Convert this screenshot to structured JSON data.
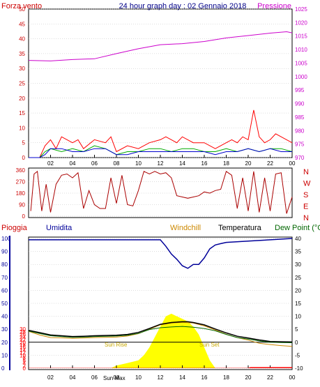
{
  "header": {
    "wind_label": "Forza vento",
    "title": "24 hour graph day : 02 Gennaio 2018",
    "pressure_label": "Pressione"
  },
  "colors": {
    "left_axis": "#cc0000",
    "pressure": "#cc00cc",
    "gust": "#ff0000",
    "wind": "#00aa00",
    "wind_avg": "#0000cc",
    "direction": "#aa0000",
    "humidity": "#000099",
    "temperature": "#000000",
    "windchill": "#cc8800",
    "dewpoint": "#006600",
    "sun": "#ffff00",
    "rain": "#ff0000",
    "grid": "#bbbbbb",
    "sun_text": "#c8a800"
  },
  "bottom_header": {
    "rain": "Pioggia",
    "humidity": "Umidita",
    "windchill": "Windchill",
    "temperature": "Temperatura",
    "dewpoint": "Dew Point (°C"
  },
  "sun_labels": {
    "rise": "Sun Rise",
    "set": "Sun Set",
    "max": "Sun Max"
  },
  "compass_letters": [
    "N",
    "W",
    "S",
    "E",
    "N"
  ],
  "chart_data": [
    {
      "type": "line",
      "name": "wind_pressure",
      "x_ticks": [
        "02",
        "04",
        "06",
        "08",
        "10",
        "12",
        "14",
        "16",
        "18",
        "20",
        "22",
        "00"
      ],
      "left_ticks": [
        0,
        5,
        10,
        15,
        20,
        25,
        30,
        35,
        40,
        45,
        50
      ],
      "right_ticks": [
        970,
        975,
        980,
        985,
        990,
        995,
        1000,
        1005,
        1010,
        1015,
        1020,
        1025
      ],
      "left_ylim": [
        0,
        50
      ],
      "right_ylim": [
        970,
        1025
      ],
      "pressure": {
        "x": [
          0,
          2,
          4,
          6,
          8,
          10,
          12,
          14,
          16,
          18,
          20,
          22,
          23.5,
          24
        ],
        "y": [
          1006.0,
          1005.8,
          1006.3,
          1006.6,
          1008.5,
          1010.3,
          1011.8,
          1012.2,
          1013.0,
          1014.3,
          1015.2,
          1016.1,
          1016.6,
          1016.2
        ]
      },
      "gust": {
        "x": [
          0,
          1,
          1.5,
          2,
          2.5,
          3,
          4,
          4.5,
          5,
          6,
          7,
          7.5,
          8,
          9,
          10,
          11,
          12,
          12.5,
          13,
          13.5,
          14,
          14.5,
          15,
          16,
          17,
          18,
          18.5,
          19,
          19.5,
          20,
          20.5,
          21,
          21.5,
          22,
          22.5,
          23,
          23.5,
          24
        ],
        "y": [
          0,
          0,
          4,
          6,
          3,
          7,
          5,
          6,
          3,
          6,
          5,
          7,
          2,
          4,
          3,
          5,
          6,
          7,
          6,
          5,
          7,
          6,
          5,
          5,
          3,
          5,
          6,
          5,
          7,
          6,
          16,
          7,
          5,
          6,
          8,
          7,
          6,
          5
        ]
      },
      "wind": {
        "x": [
          0,
          1,
          1.5,
          2,
          3,
          4,
          5,
          6,
          7,
          8,
          9,
          10,
          11,
          12,
          13,
          14,
          15,
          16,
          17,
          18,
          19,
          20,
          21,
          22,
          23,
          24
        ],
        "y": [
          0,
          0,
          2,
          3,
          2,
          3,
          2,
          4,
          3,
          1,
          2,
          2,
          3,
          3,
          2,
          3,
          3,
          2,
          2,
          3,
          2,
          3,
          2,
          3,
          3,
          2
        ]
      },
      "wind_avg": {
        "x": [
          0,
          1,
          1.5,
          2,
          3,
          4,
          5,
          6,
          7,
          8,
          9,
          10,
          11,
          12,
          13,
          14,
          15,
          16,
          17,
          18,
          19,
          20,
          21,
          22,
          23,
          24
        ],
        "y": [
          0,
          0,
          1,
          3,
          3,
          2,
          2,
          3,
          3,
          1,
          1,
          2,
          2,
          2,
          2,
          2,
          2,
          2,
          1,
          2,
          2,
          3,
          2,
          3,
          2,
          2
        ]
      }
    },
    {
      "type": "scatter",
      "name": "wind_direction",
      "y_ticks": [
        360,
        270,
        180,
        90,
        0
      ],
      "ylim": [
        0,
        360
      ],
      "x": [
        0.2,
        0.5,
        0.8,
        1.2,
        1.6,
        2.0,
        2.5,
        3,
        3.5,
        4,
        4.5,
        5,
        5.5,
        6,
        6.5,
        7,
        7.5,
        8,
        8.5,
        9,
        9.5,
        10,
        10.5,
        11,
        11.5,
        12,
        12.5,
        13,
        13.5,
        14,
        14.5,
        15,
        15.5,
        16,
        16.5,
        17,
        17.5,
        18,
        18.5,
        19,
        19.5,
        20,
        20.5,
        21,
        21.5,
        22,
        22.5,
        23,
        23.5,
        24
      ],
      "y": [
        40,
        330,
        350,
        40,
        250,
        30,
        250,
        320,
        330,
        300,
        340,
        60,
        200,
        90,
        60,
        60,
        300,
        100,
        320,
        90,
        80,
        200,
        350,
        330,
        350,
        330,
        340,
        300,
        160,
        150,
        140,
        150,
        160,
        190,
        180,
        200,
        210,
        350,
        320,
        60,
        300,
        40,
        350,
        30,
        300,
        40,
        330,
        340,
        20,
        150
      ]
    },
    {
      "type": "line",
      "name": "temp_humidity_rain",
      "x_ticks": [
        "02",
        "04",
        "06",
        "08",
        "10",
        "12",
        "14",
        "16",
        "18",
        "20",
        "22",
        "00"
      ],
      "humidity_ticks": [
        0,
        10,
        20,
        30,
        40,
        50,
        60,
        70,
        80,
        90,
        100
      ],
      "rain_ticks": [
        0,
        2,
        4,
        6,
        8,
        10,
        12,
        14,
        16,
        18,
        20,
        22,
        24,
        26,
        28,
        30
      ],
      "temp_ticks": [
        -10,
        -5,
        0,
        5,
        10,
        15,
        20,
        25,
        30,
        35,
        40
      ],
      "temp_ylim": [
        -10,
        40
      ],
      "humidity": {
        "x": [
          0,
          2,
          4,
          6,
          8,
          10,
          11,
          12,
          12.5,
          13,
          13.5,
          14,
          14.5,
          15,
          15.5,
          16,
          16.5,
          17,
          17.5,
          18,
          20,
          22,
          24
        ],
        "y": [
          99,
          99,
          99,
          99,
          99,
          99,
          99,
          99,
          94,
          88,
          84,
          79,
          77,
          80,
          80,
          85,
          92,
          95,
          96,
          97,
          98,
          99,
          100
        ]
      },
      "temperature": {
        "x": [
          0,
          1,
          2,
          3,
          4,
          5,
          6,
          7,
          8,
          9,
          10,
          11,
          12,
          13,
          14,
          14.5,
          15,
          16,
          17,
          18,
          19,
          20,
          21,
          22,
          23,
          24
        ],
        "y": [
          4.6,
          3.7,
          2.8,
          2.5,
          2.2,
          2.3,
          2.5,
          2.6,
          2.7,
          3.0,
          3.8,
          5.3,
          6.9,
          7.6,
          7.9,
          7.9,
          7.6,
          6.7,
          5.1,
          3.6,
          2.3,
          1.6,
          0.9,
          0.3,
          0.2,
          0.1
        ]
      },
      "windchill": {
        "x": [
          0,
          1,
          2,
          3,
          4,
          5,
          6,
          7,
          8,
          9,
          10,
          11,
          12,
          13,
          14,
          15,
          16,
          17,
          18,
          19,
          20,
          21,
          22,
          23,
          24
        ],
        "y": [
          4.2,
          2.8,
          1.8,
          1.7,
          1.5,
          1.6,
          1.8,
          1.9,
          2.0,
          2.4,
          3.3,
          5.0,
          6.7,
          7.4,
          7.7,
          7.4,
          6.3,
          4.7,
          3.1,
          1.8,
          0.8,
          -0.4,
          -0.9,
          -1.3,
          -1.6
        ]
      },
      "dewpoint": {
        "x": [
          0,
          1,
          2,
          3,
          4,
          5,
          6,
          7,
          8,
          9,
          10,
          11,
          12,
          13,
          14,
          15,
          16,
          17,
          18,
          19,
          20,
          21,
          22,
          23,
          24
        ],
        "y": [
          4.3,
          3.4,
          2.5,
          2.2,
          1.9,
          2.0,
          2.2,
          2.3,
          2.4,
          2.7,
          3.4,
          4.9,
          5.6,
          5.9,
          6.1,
          5.8,
          5.3,
          4.4,
          3.0,
          1.8,
          1.2,
          0.5,
          0.0,
          -0.1,
          -0.2
        ]
      },
      "sun": {
        "x": [
          0,
          7.5,
          8,
          9,
          10,
          10.5,
          11,
          11.5,
          12,
          12.5,
          13,
          13.5,
          14,
          14.5,
          15,
          15.5,
          16,
          16.5,
          17,
          24
        ],
        "y": [
          0,
          0,
          1,
          2,
          3,
          5,
          8,
          12,
          16,
          20,
          21,
          20,
          19,
          18,
          16,
          13,
          8,
          3,
          0,
          0
        ]
      },
      "rain": {
        "x": [
          0,
          20,
          20.2,
          24
        ],
        "y": [
          0.2,
          0.2,
          0.8,
          0.8
        ]
      }
    }
  ]
}
